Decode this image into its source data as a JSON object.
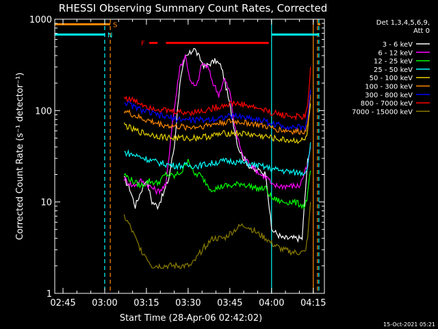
{
  "chart_data": {
    "type": "line",
    "title": "RHESSI Observing Summary Count Rates, Corrected",
    "xlabel": "Start Time (28-Apr-06 02:42:02)",
    "ylabel": "Corrected Count Rate (s⁻¹ detector⁻¹)",
    "yscale": "log",
    "ylim": [
      1,
      1000
    ],
    "xlim": [
      "02:42:02",
      "04:19:00"
    ],
    "y_ticks": [
      {
        "value": 1,
        "label": "1"
      },
      {
        "value": 10,
        "label": "10"
      },
      {
        "value": 100,
        "label": "100"
      },
      {
        "value": 1000,
        "label": "1000"
      }
    ],
    "x_ticks": [
      "02:45",
      "03:00",
      "03:15",
      "03:30",
      "03:45",
      "04:00",
      "04:15"
    ],
    "legend_header": [
      "Det 1,3,4,5,6,9,",
      "Att 0"
    ],
    "legend_position": "right",
    "footer": "15-Oct-2021 05:21",
    "series": [
      {
        "name": "3 - 6 keV",
        "color": "#ffffff",
        "points": [
          [
            "03:07",
            18
          ],
          [
            "03:09",
            14
          ],
          [
            "03:11",
            9
          ],
          [
            "03:13",
            13
          ],
          [
            "03:15",
            18
          ],
          [
            "03:17",
            10
          ],
          [
            "03:19",
            9
          ],
          [
            "03:21",
            12
          ],
          [
            "03:23",
            18
          ],
          [
            "03:25",
            40
          ],
          [
            "03:27",
            200
          ],
          [
            "03:29",
            380
          ],
          [
            "03:31",
            430
          ],
          [
            "03:32",
            490
          ],
          [
            "03:34",
            380
          ],
          [
            "03:36",
            300
          ],
          [
            "03:38",
            330
          ],
          [
            "03:40",
            350
          ],
          [
            "03:42",
            300
          ],
          [
            "03:44",
            160
          ],
          [
            "03:46",
            80
          ],
          [
            "03:48",
            40
          ],
          [
            "03:50",
            30
          ],
          [
            "03:52",
            25
          ],
          [
            "03:54",
            22
          ],
          [
            "03:56",
            22
          ],
          [
            "03:58",
            20
          ],
          [
            "04:00",
            5
          ],
          [
            "04:04",
            4
          ],
          [
            "04:08",
            4
          ],
          [
            "04:11",
            4
          ],
          [
            "04:13",
            30
          ]
        ]
      },
      {
        "name": "6 - 12 keV",
        "color": "#ff00ff",
        "points": [
          [
            "03:07",
            18
          ],
          [
            "03:10",
            15
          ],
          [
            "03:13",
            17
          ],
          [
            "03:16",
            15
          ],
          [
            "03:19",
            13
          ],
          [
            "03:22",
            15
          ],
          [
            "03:24",
            60
          ],
          [
            "03:27",
            300
          ],
          [
            "03:29",
            400
          ],
          [
            "03:31",
            200
          ],
          [
            "03:33",
            180
          ],
          [
            "03:35",
            330
          ],
          [
            "03:37",
            300
          ],
          [
            "03:39",
            200
          ],
          [
            "03:41",
            150
          ],
          [
            "03:43",
            220
          ],
          [
            "03:45",
            160
          ],
          [
            "03:47",
            60
          ],
          [
            "03:50",
            30
          ],
          [
            "03:53",
            25
          ],
          [
            "03:56",
            20
          ],
          [
            "03:59",
            18
          ],
          [
            "04:00",
            15
          ],
          [
            "04:05",
            15
          ],
          [
            "04:10",
            15
          ],
          [
            "04:13",
            25
          ],
          [
            "04:14",
            40
          ]
        ]
      },
      {
        "name": "12 - 25 keV",
        "color": "#00ff00",
        "points": [
          [
            "03:07",
            20
          ],
          [
            "03:10",
            17
          ],
          [
            "03:13",
            15
          ],
          [
            "03:16",
            17
          ],
          [
            "03:19",
            16
          ],
          [
            "03:22",
            20
          ],
          [
            "03:25",
            19
          ],
          [
            "03:28",
            22
          ],
          [
            "03:30",
            30
          ],
          [
            "03:32",
            20
          ],
          [
            "03:34",
            20
          ],
          [
            "03:36",
            17
          ],
          [
            "03:38",
            14
          ],
          [
            "03:40",
            14
          ],
          [
            "03:43",
            15
          ],
          [
            "03:46",
            15
          ],
          [
            "03:49",
            16
          ],
          [
            "03:52",
            15
          ],
          [
            "03:55",
            14
          ],
          [
            "03:58",
            14
          ],
          [
            "04:00",
            11
          ],
          [
            "04:04",
            10
          ],
          [
            "04:08",
            10
          ],
          [
            "04:12",
            9
          ],
          [
            "04:13",
            12
          ],
          [
            "04:14",
            22
          ]
        ]
      },
      {
        "name": "25 - 50 keV",
        "color": "#00ffff",
        "points": [
          [
            "03:07",
            35
          ],
          [
            "03:10",
            33
          ],
          [
            "03:13",
            31
          ],
          [
            "03:16",
            29
          ],
          [
            "03:19",
            27
          ],
          [
            "03:22",
            26
          ],
          [
            "03:25",
            25
          ],
          [
            "03:28",
            25
          ],
          [
            "03:31",
            25
          ],
          [
            "03:34",
            25
          ],
          [
            "03:37",
            26
          ],
          [
            "03:40",
            27
          ],
          [
            "03:43",
            28
          ],
          [
            "03:46",
            28
          ],
          [
            "03:49",
            27
          ],
          [
            "03:52",
            26
          ],
          [
            "03:55",
            25
          ],
          [
            "03:58",
            24
          ],
          [
            "04:00",
            23
          ],
          [
            "04:04",
            22
          ],
          [
            "04:08",
            21
          ],
          [
            "04:12",
            21
          ],
          [
            "04:13",
            25
          ],
          [
            "04:14",
            45
          ]
        ]
      },
      {
        "name": "50 - 100 keV",
        "color": "#e6d000",
        "points": [
          [
            "03:07",
            70
          ],
          [
            "03:10",
            62
          ],
          [
            "03:13",
            58
          ],
          [
            "03:16",
            55
          ],
          [
            "03:19",
            53
          ],
          [
            "03:22",
            51
          ],
          [
            "03:25",
            50
          ],
          [
            "03:28",
            50
          ],
          [
            "03:31",
            50
          ],
          [
            "03:34",
            51
          ],
          [
            "03:37",
            52
          ],
          [
            "03:40",
            54
          ],
          [
            "03:43",
            56
          ],
          [
            "03:46",
            57
          ],
          [
            "03:49",
            56
          ],
          [
            "03:52",
            55
          ],
          [
            "03:55",
            53
          ],
          [
            "03:58",
            52
          ],
          [
            "04:00",
            50
          ],
          [
            "04:04",
            48
          ],
          [
            "04:08",
            47
          ],
          [
            "04:12",
            47
          ],
          [
            "04:13",
            60
          ],
          [
            "04:14",
            120
          ]
        ]
      },
      {
        "name": "100 - 300 keV",
        "color": "#ff8800",
        "points": [
          [
            "03:07",
            100
          ],
          [
            "03:10",
            90
          ],
          [
            "03:13",
            82
          ],
          [
            "03:16",
            77
          ],
          [
            "03:19",
            72
          ],
          [
            "03:22",
            69
          ],
          [
            "03:25",
            67
          ],
          [
            "03:28",
            66
          ],
          [
            "03:31",
            66
          ],
          [
            "03:34",
            67
          ],
          [
            "03:37",
            69
          ],
          [
            "03:40",
            72
          ],
          [
            "03:43",
            75
          ],
          [
            "03:46",
            76
          ],
          [
            "03:49",
            75
          ],
          [
            "03:52",
            73
          ],
          [
            "03:55",
            70
          ],
          [
            "03:58",
            67
          ],
          [
            "04:00",
            64
          ],
          [
            "04:04",
            61
          ],
          [
            "04:08",
            59
          ],
          [
            "04:12",
            59
          ],
          [
            "04:13",
            75
          ],
          [
            "04:14",
            150
          ]
        ]
      },
      {
        "name": "300 - 800 keV",
        "color": "#0000ff",
        "points": [
          [
            "03:07",
            125
          ],
          [
            "03:10",
            112
          ],
          [
            "03:13",
            102
          ],
          [
            "03:16",
            95
          ],
          [
            "03:19",
            89
          ],
          [
            "03:22",
            85
          ],
          [
            "03:25",
            82
          ],
          [
            "03:28",
            80
          ],
          [
            "03:31",
            79
          ],
          [
            "03:34",
            79
          ],
          [
            "03:37",
            80
          ],
          [
            "03:40",
            82
          ],
          [
            "03:43",
            85
          ],
          [
            "03:46",
            87
          ],
          [
            "03:49",
            86
          ],
          [
            "03:52",
            83
          ],
          [
            "03:55",
            80
          ],
          [
            "03:58",
            76
          ],
          [
            "04:00",
            72
          ],
          [
            "04:04",
            68
          ],
          [
            "04:08",
            66
          ],
          [
            "04:12",
            65
          ],
          [
            "04:13",
            85
          ],
          [
            "04:14",
            170
          ]
        ]
      },
      {
        "name": "800 - 7000 keV",
        "color": "#ff0000",
        "points": [
          [
            "03:07",
            140
          ],
          [
            "03:10",
            130
          ],
          [
            "03:13",
            120
          ],
          [
            "03:16",
            110
          ],
          [
            "03:19",
            105
          ],
          [
            "03:22",
            100
          ],
          [
            "03:25",
            98
          ],
          [
            "03:28",
            95
          ],
          [
            "03:31",
            96
          ],
          [
            "03:34",
            98
          ],
          [
            "03:37",
            102
          ],
          [
            "03:40",
            108
          ],
          [
            "03:43",
            115
          ],
          [
            "03:46",
            120
          ],
          [
            "03:49",
            118
          ],
          [
            "03:52",
            112
          ],
          [
            "03:55",
            106
          ],
          [
            "03:58",
            100
          ],
          [
            "04:00",
            95
          ],
          [
            "04:04",
            90
          ],
          [
            "04:08",
            86
          ],
          [
            "04:12",
            85
          ],
          [
            "04:13",
            110
          ],
          [
            "04:14",
            300
          ]
        ]
      },
      {
        "name": "7000 - 15000 keV",
        "color": "#8b7d00",
        "points": [
          [
            "03:07",
            7
          ],
          [
            "03:09",
            5.5
          ],
          [
            "03:11",
            4
          ],
          [
            "03:13",
            3
          ],
          [
            "03:15",
            2.5
          ],
          [
            "03:17",
            2
          ],
          [
            "03:20",
            2
          ],
          [
            "03:23",
            2
          ],
          [
            "03:26",
            2
          ],
          [
            "03:29",
            2
          ],
          [
            "03:31",
            2
          ],
          [
            "03:33",
            2.4
          ],
          [
            "03:35",
            3
          ],
          [
            "03:37",
            3.5
          ],
          [
            "03:39",
            4
          ],
          [
            "03:41",
            4
          ],
          [
            "03:43",
            4
          ],
          [
            "03:45",
            4.5
          ],
          [
            "03:47",
            5
          ],
          [
            "03:49",
            5.5
          ],
          [
            "03:51",
            5.5
          ],
          [
            "03:53",
            5
          ],
          [
            "03:55",
            4.5
          ],
          [
            "03:58",
            4
          ],
          [
            "04:00",
            3.5
          ],
          [
            "04:04",
            3
          ],
          [
            "04:08",
            2.8
          ],
          [
            "04:12",
            2.8
          ],
          [
            "04:13",
            4
          ],
          [
            "04:14",
            10
          ]
        ]
      }
    ],
    "segments": [
      {
        "label": "S",
        "color": "#ff8800",
        "y": 880,
        "ranges": [
          [
            "02:42:02",
            "03:02"
          ],
          [
            "04:16:30",
            "04:17:30"
          ]
        ]
      },
      {
        "label": "N",
        "color": "#00ffff",
        "y": 680,
        "ranges": [
          [
            "02:42:02",
            "03:00"
          ],
          [
            "04:00",
            "04:17"
          ]
        ]
      },
      {
        "label": "F",
        "color": "#ff0000",
        "y": 550,
        "ranges": [
          [
            "03:16",
            "03:19"
          ],
          [
            "03:22",
            "03:59"
          ]
        ]
      }
    ],
    "vlines": [
      {
        "t": "03:00",
        "color": "#00ffff",
        "style": "dashed"
      },
      {
        "t": "03:02",
        "color": "#ff8800",
        "style": "dashed"
      },
      {
        "t": "04:00",
        "color": "#00ffff",
        "style": "solid"
      },
      {
        "t": "04:15",
        "color": "#ff8800",
        "style": "solid"
      },
      {
        "t": "04:16:30",
        "color": "#ff8800",
        "style": "dashed"
      },
      {
        "t": "04:17",
        "color": "#00ffff",
        "style": "dashed"
      }
    ]
  }
}
